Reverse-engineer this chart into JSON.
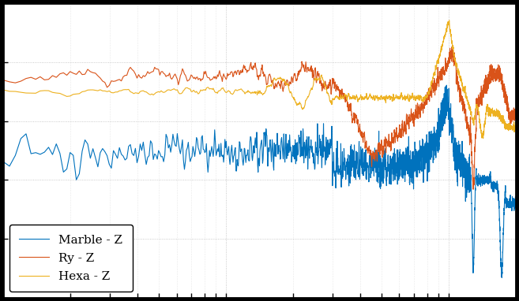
{
  "background_color": "#000000",
  "axes_color": "#ffffff",
  "grid_color": "#aaaaaa",
  "grid_style": "dotted",
  "line_colors": {
    "marble": "#0072bd",
    "ry": "#d95319",
    "hexa": "#edb120"
  },
  "legend_labels": [
    "Marble - Z",
    "Ry - Z",
    "Hexa - Z"
  ],
  "legend_loc": "lower left",
  "xlim": [
    1,
    200
  ],
  "ylim": [
    -80,
    20
  ],
  "figsize": [
    6.57,
    3.82
  ],
  "dpi": 100
}
